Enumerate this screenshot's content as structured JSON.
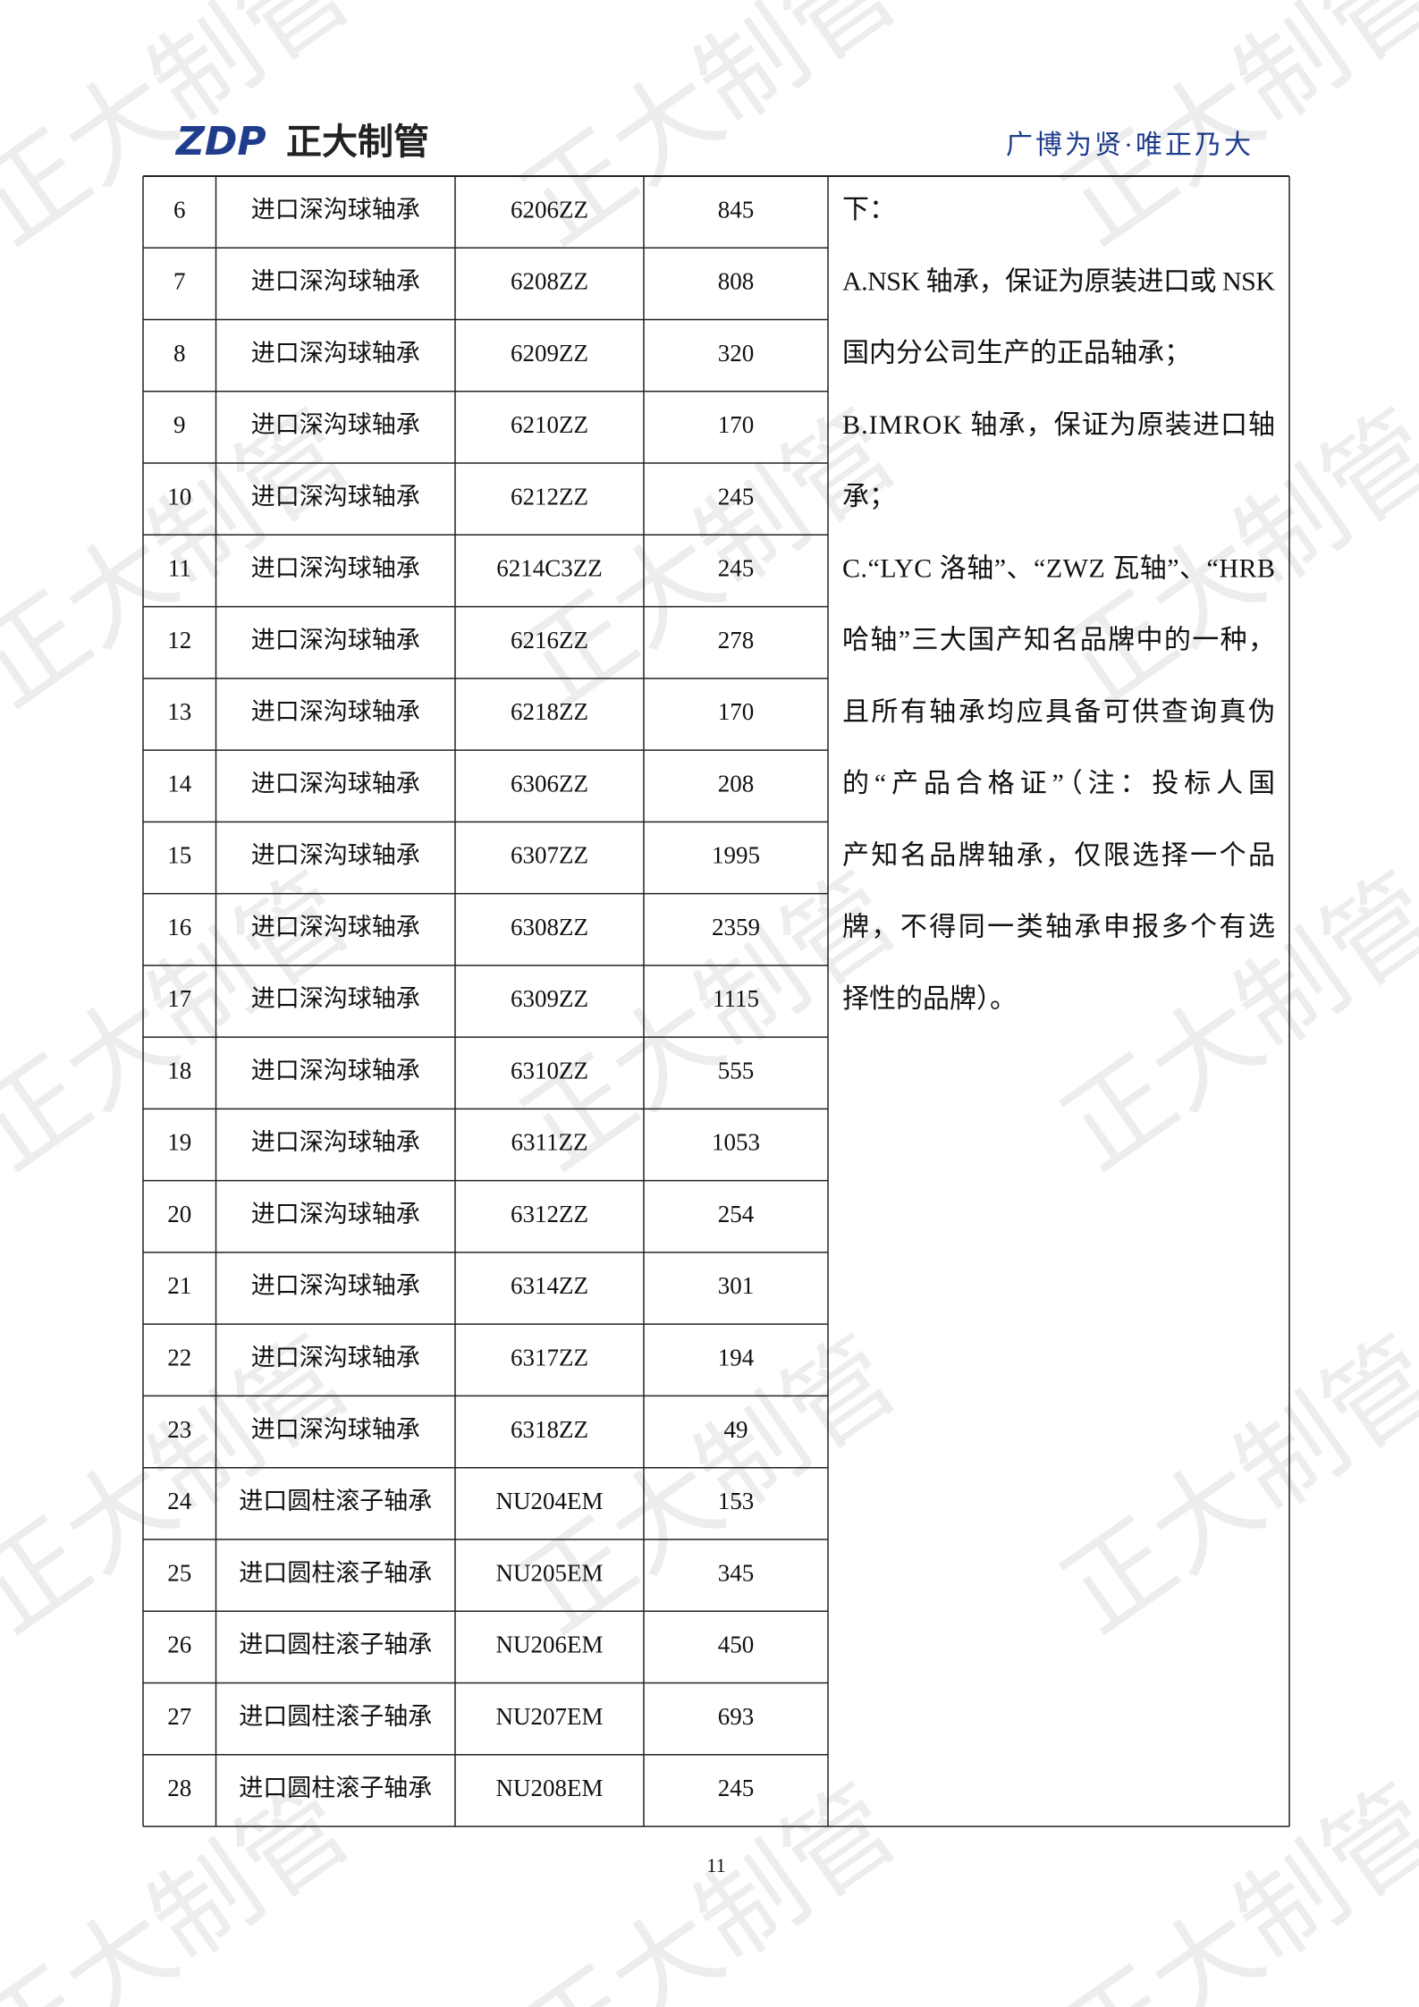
{
  "header": {
    "logo_mark": "ZDP",
    "logo_text": "正大制管",
    "slogan": "广博为贤·唯正乃大"
  },
  "watermark": "正大制管",
  "table": {
    "rows": [
      [
        6,
        "进口深沟球轴承",
        "6206ZZ",
        845
      ],
      [
        7,
        "进口深沟球轴承",
        "6208ZZ",
        808
      ],
      [
        8,
        "进口深沟球轴承",
        "6209ZZ",
        320
      ],
      [
        9,
        "进口深沟球轴承",
        "6210ZZ",
        170
      ],
      [
        10,
        "进口深沟球轴承",
        "6212ZZ",
        245
      ],
      [
        11,
        "进口深沟球轴承",
        "6214C3ZZ",
        245
      ],
      [
        12,
        "进口深沟球轴承",
        "6216ZZ",
        278
      ],
      [
        13,
        "进口深沟球轴承",
        "6218ZZ",
        170
      ],
      [
        14,
        "进口深沟球轴承",
        "6306ZZ",
        208
      ],
      [
        15,
        "进口深沟球轴承",
        "6307ZZ",
        1995
      ],
      [
        16,
        "进口深沟球轴承",
        "6308ZZ",
        2359
      ],
      [
        17,
        "进口深沟球轴承",
        "6309ZZ",
        1115
      ],
      [
        18,
        "进口深沟球轴承",
        "6310ZZ",
        555
      ],
      [
        19,
        "进口深沟球轴承",
        "6311ZZ",
        1053
      ],
      [
        20,
        "进口深沟球轴承",
        "6312ZZ",
        254
      ],
      [
        21,
        "进口深沟球轴承",
        "6314ZZ",
        301
      ],
      [
        22,
        "进口深沟球轴承",
        "6317ZZ",
        194
      ],
      [
        23,
        "进口深沟球轴承",
        "6318ZZ",
        49
      ],
      [
        24,
        "进口圆柱滚子轴承",
        "NU204EM",
        153
      ],
      [
        25,
        "进口圆柱滚子轴承",
        "NU205EM",
        345
      ],
      [
        26,
        "进口圆柱滚子轴承",
        "NU206EM",
        450
      ],
      [
        27,
        "进口圆柱滚子轴承",
        "NU207EM",
        693
      ],
      [
        28,
        "进口圆柱滚子轴承",
        "NU208EM",
        245
      ]
    ],
    "note_lines": [
      "下：",
      "A.NSK 轴承，保证为原装进口或 NSK",
      "国内分公司生产的正品轴承；",
      "B.IMROK 轴承，保证为原装进口轴",
      "承；",
      "C.“LYC 洛轴”、“ZWZ 瓦轴”、“HRB",
      "哈轴”三大国产知名品牌中的一种，",
      "且所有轴承均应具备可供查询真伪",
      "的“产品合格证”（注：投标人国",
      "产知名品牌轴承，仅限选择一个品",
      "牌，不得同一类轴承申报多个有选",
      "择性的品牌）。"
    ]
  },
  "page_number": "11"
}
